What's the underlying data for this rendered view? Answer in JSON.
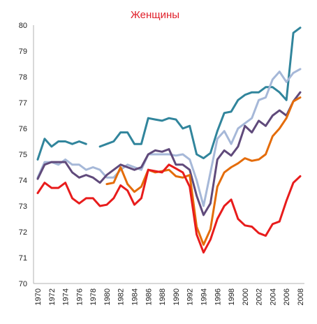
{
  "chart_data": {
    "type": "line",
    "title": "Женщины",
    "title_color": "#e0202a",
    "xlabel": "",
    "ylabel": "",
    "ylim": [
      70,
      80
    ],
    "yticks": [
      70,
      71,
      72,
      73,
      74,
      75,
      76,
      77,
      78,
      79,
      80
    ],
    "xlim": [
      1970,
      2008
    ],
    "xticks": [
      1970,
      1972,
      1974,
      1976,
      1978,
      1980,
      1982,
      1984,
      1986,
      1988,
      1990,
      1992,
      1994,
      1996,
      1998,
      2000,
      2002,
      2004,
      2006,
      2008
    ],
    "x_tick_labels": [
      "1970",
      "1972",
      "1974",
      "1976",
      "1978",
      "1980",
      "1982",
      "1984",
      "1986",
      "1988",
      "1990",
      "1992",
      "1994",
      "1996",
      "1998",
      "2000",
      "2002",
      "2004",
      "2006",
      "2008"
    ],
    "grid": false,
    "legend": "none",
    "series": [
      {
        "color": "#31859c",
        "points": [
          [
            1970,
            74.8
          ],
          [
            1971,
            75.6
          ],
          [
            1972,
            75.3
          ],
          [
            1973,
            75.5
          ],
          [
            1974,
            75.5
          ],
          [
            1975,
            75.4
          ],
          [
            1976,
            75.5
          ],
          [
            1977,
            75.4
          ],
          [
            1979,
            75.3
          ],
          [
            1980,
            75.4
          ],
          [
            1981,
            75.5
          ],
          [
            1982,
            75.85
          ],
          [
            1983,
            75.85
          ],
          [
            1984,
            75.4
          ],
          [
            1985,
            75.4
          ],
          [
            1986,
            76.4
          ],
          [
            1987,
            76.35
          ],
          [
            1988,
            76.3
          ],
          [
            1989,
            76.4
          ],
          [
            1990,
            76.35
          ],
          [
            1991,
            76.0
          ],
          [
            1992,
            76.1
          ],
          [
            1993,
            75.0
          ],
          [
            1994,
            74.85
          ],
          [
            1995,
            75.05
          ],
          [
            1996,
            75.9
          ],
          [
            1997,
            76.6
          ],
          [
            1998,
            76.65
          ],
          [
            1999,
            77.1
          ],
          [
            2000,
            77.3
          ],
          [
            2001,
            77.4
          ],
          [
            2002,
            77.4
          ],
          [
            2003,
            77.6
          ],
          [
            2004,
            77.6
          ],
          [
            2005,
            77.4
          ],
          [
            2006,
            77.1
          ],
          [
            2007,
            79.7
          ],
          [
            2008,
            79.9
          ]
        ]
      },
      {
        "color": "#a6b8d8",
        "points": [
          [
            1970,
            74.1
          ],
          [
            1971,
            74.7
          ],
          [
            1972,
            74.7
          ],
          [
            1973,
            74.6
          ],
          [
            1974,
            74.8
          ],
          [
            1975,
            74.6
          ],
          [
            1976,
            74.6
          ],
          [
            1977,
            74.4
          ],
          [
            1978,
            74.5
          ],
          [
            1979,
            74.4
          ],
          [
            1980,
            74.1
          ],
          [
            1981,
            74.1
          ],
          [
            1982,
            74.4
          ],
          [
            1983,
            74.6
          ],
          [
            1984,
            74.5
          ],
          [
            1985,
            74.4
          ],
          [
            1986,
            75.0
          ],
          [
            1987,
            75.0
          ],
          [
            1988,
            75.0
          ],
          [
            1989,
            75.0
          ],
          [
            1990,
            74.95
          ],
          [
            1991,
            75.0
          ],
          [
            1992,
            74.8
          ],
          [
            1993,
            74.0
          ],
          [
            1994,
            73.0
          ],
          [
            1995,
            74.3
          ],
          [
            1996,
            75.6
          ],
          [
            1997,
            75.9
          ],
          [
            1998,
            75.4
          ],
          [
            1999,
            76.0
          ],
          [
            2000,
            76.2
          ],
          [
            2001,
            76.4
          ],
          [
            2002,
            77.1
          ],
          [
            2003,
            77.2
          ],
          [
            2004,
            77.9
          ],
          [
            2005,
            78.2
          ],
          [
            2006,
            77.8
          ],
          [
            2007,
            78.15
          ],
          [
            2008,
            78.3
          ]
        ]
      },
      {
        "color": "#604a7b",
        "points": [
          [
            1970,
            74.05
          ],
          [
            1971,
            74.6
          ],
          [
            1972,
            74.7
          ],
          [
            1973,
            74.7
          ],
          [
            1974,
            74.7
          ],
          [
            1975,
            74.3
          ],
          [
            1976,
            74.1
          ],
          [
            1977,
            74.2
          ],
          [
            1978,
            74.1
          ],
          [
            1979,
            73.9
          ],
          [
            1980,
            74.2
          ],
          [
            1981,
            74.4
          ],
          [
            1982,
            74.6
          ],
          [
            1983,
            74.5
          ],
          [
            1984,
            74.4
          ],
          [
            1985,
            74.5
          ],
          [
            1986,
            75.0
          ],
          [
            1987,
            75.15
          ],
          [
            1988,
            75.1
          ],
          [
            1989,
            75.2
          ],
          [
            1990,
            74.6
          ],
          [
            1991,
            74.6
          ],
          [
            1992,
            74.4
          ],
          [
            1993,
            73.4
          ],
          [
            1994,
            72.65
          ],
          [
            1995,
            73.1
          ],
          [
            1996,
            74.8
          ],
          [
            1997,
            75.15
          ],
          [
            1998,
            74.95
          ],
          [
            1999,
            75.3
          ],
          [
            2000,
            76.1
          ],
          [
            2001,
            75.85
          ],
          [
            2002,
            76.3
          ],
          [
            2003,
            76.1
          ],
          [
            2004,
            76.5
          ],
          [
            2005,
            76.7
          ],
          [
            2006,
            76.5
          ],
          [
            2007,
            77.05
          ],
          [
            2008,
            77.4
          ]
        ]
      },
      {
        "color": "#e46c0a",
        "points": [
          [
            1980,
            73.85
          ],
          [
            1981,
            73.9
          ],
          [
            1982,
            74.5
          ],
          [
            1983,
            73.85
          ],
          [
            1984,
            73.55
          ],
          [
            1985,
            73.75
          ],
          [
            1986,
            74.4
          ],
          [
            1987,
            74.3
          ],
          [
            1988,
            74.35
          ],
          [
            1989,
            74.4
          ],
          [
            1990,
            74.15
          ],
          [
            1991,
            74.1
          ],
          [
            1992,
            74.2
          ],
          [
            1993,
            72.2
          ],
          [
            1994,
            71.5
          ],
          [
            1995,
            72.1
          ],
          [
            1996,
            73.75
          ],
          [
            1997,
            74.3
          ],
          [
            1998,
            74.5
          ],
          [
            1999,
            74.65
          ],
          [
            2000,
            74.85
          ],
          [
            2001,
            74.75
          ],
          [
            2002,
            74.8
          ],
          [
            2003,
            75.0
          ],
          [
            2004,
            75.7
          ],
          [
            2005,
            76.0
          ],
          [
            2006,
            76.4
          ],
          [
            2007,
            77.05
          ],
          [
            2008,
            77.2
          ]
        ]
      },
      {
        "color": "#e81c1c",
        "points": [
          [
            1970,
            73.5
          ],
          [
            1971,
            73.9
          ],
          [
            1972,
            73.7
          ],
          [
            1973,
            73.7
          ],
          [
            1974,
            73.9
          ],
          [
            1975,
            73.3
          ],
          [
            1976,
            73.1
          ],
          [
            1977,
            73.3
          ],
          [
            1978,
            73.3
          ],
          [
            1979,
            73.0
          ],
          [
            1980,
            73.05
          ],
          [
            1981,
            73.3
          ],
          [
            1982,
            73.8
          ],
          [
            1983,
            73.6
          ],
          [
            1984,
            73.05
          ],
          [
            1985,
            73.3
          ],
          [
            1986,
            74.4
          ],
          [
            1987,
            74.35
          ],
          [
            1988,
            74.3
          ],
          [
            1989,
            74.6
          ],
          [
            1990,
            74.45
          ],
          [
            1991,
            74.3
          ],
          [
            1992,
            73.75
          ],
          [
            1993,
            71.9
          ],
          [
            1994,
            71.2
          ],
          [
            1995,
            71.7
          ],
          [
            1996,
            72.5
          ],
          [
            1997,
            73.0
          ],
          [
            1998,
            73.25
          ],
          [
            1999,
            72.5
          ],
          [
            2000,
            72.25
          ],
          [
            2001,
            72.2
          ],
          [
            2002,
            71.95
          ],
          [
            2003,
            71.85
          ],
          [
            2004,
            72.3
          ],
          [
            2005,
            72.4
          ],
          [
            2006,
            73.2
          ],
          [
            2007,
            73.9
          ],
          [
            2008,
            74.15
          ]
        ]
      }
    ]
  }
}
